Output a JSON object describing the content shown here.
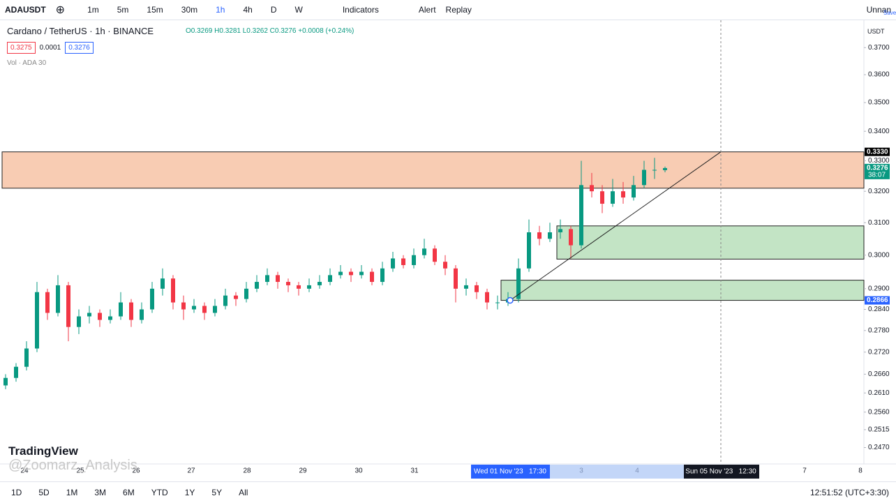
{
  "toolbar": {
    "symbol": "ADAUSDT",
    "intervals": [
      "1m",
      "5m",
      "15m",
      "30m",
      "1h",
      "4h",
      "D",
      "W"
    ],
    "indicators": "Indicators",
    "alert": "Alert",
    "replay": "Replay",
    "layout_name": "Unnan",
    "save": "Save"
  },
  "legend": {
    "title": "Cardano / TetherUS · 1h · BINANCE",
    "ohlc": "O0.3269 H0.3281 L0.3262 C0.3276 +0.0008 (+0.24%)",
    "bid": "0.3275",
    "spread": "0.0001",
    "ask": "0.3276",
    "volume": "Vol · ADA 30"
  },
  "currency": "USDT",
  "watermark": {
    "brand": "TradingView",
    "author": "@Zoomarz_Analysis"
  },
  "chart_data": {
    "type": "candlestick",
    "log_scale": true,
    "up_color": "#089981",
    "down_color": "#f23645",
    "ylim": [
      0.2438,
      0.3801
    ],
    "yticks": [
      {
        "value": 0.37,
        "label": "0.3700"
      },
      {
        "value": 0.36,
        "label": "0.3600"
      },
      {
        "value": 0.35,
        "label": "0.3500"
      },
      {
        "value": 0.34,
        "label": "0.3400"
      },
      {
        "value": 0.33,
        "label": "0.3300"
      },
      {
        "value": 0.32,
        "label": "0.3200"
      },
      {
        "value": 0.31,
        "label": "0.3100"
      },
      {
        "value": 0.3,
        "label": "0.3000"
      },
      {
        "value": 0.29,
        "label": "0.2900"
      },
      {
        "value": 0.284,
        "label": "0.2840"
      },
      {
        "value": 0.278,
        "label": "0.2780"
      },
      {
        "value": 0.272,
        "label": "0.2720"
      },
      {
        "value": 0.266,
        "label": "0.2660"
      },
      {
        "value": 0.261,
        "label": "0.2610"
      },
      {
        "value": 0.256,
        "label": "0.2560"
      },
      {
        "value": 0.2515,
        "label": "0.2515"
      },
      {
        "value": 0.247,
        "label": "0.2470"
      }
    ],
    "x_labels": [
      "24",
      "25",
      "26",
      "27",
      "28",
      "29",
      "30",
      "31",
      "3",
      "4",
      "7",
      "8"
    ],
    "crosshair_labels": [
      "Wed 01 Nov '23   17:30",
      "Sun 05 Nov '23   12:30"
    ],
    "candles": [
      [
        0.263,
        0.266,
        0.262,
        0.265
      ],
      [
        0.265,
        0.269,
        0.264,
        0.268
      ],
      [
        0.268,
        0.275,
        0.267,
        0.273
      ],
      [
        0.273,
        0.292,
        0.272,
        0.289
      ],
      [
        0.289,
        0.29,
        0.281,
        0.283
      ],
      [
        0.283,
        0.294,
        0.282,
        0.291
      ],
      [
        0.291,
        0.292,
        0.275,
        0.279
      ],
      [
        0.279,
        0.284,
        0.277,
        0.282
      ],
      [
        0.282,
        0.285,
        0.28,
        0.283
      ],
      [
        0.283,
        0.284,
        0.279,
        0.281
      ],
      [
        0.281,
        0.284,
        0.28,
        0.282
      ],
      [
        0.282,
        0.289,
        0.281,
        0.286
      ],
      [
        0.286,
        0.287,
        0.279,
        0.281
      ],
      [
        0.281,
        0.286,
        0.28,
        0.284
      ],
      [
        0.284,
        0.292,
        0.283,
        0.29
      ],
      [
        0.29,
        0.296,
        0.288,
        0.293
      ],
      [
        0.293,
        0.294,
        0.284,
        0.286
      ],
      [
        0.286,
        0.288,
        0.281,
        0.284
      ],
      [
        0.284,
        0.287,
        0.283,
        0.285
      ],
      [
        0.285,
        0.286,
        0.281,
        0.283
      ],
      [
        0.283,
        0.287,
        0.282,
        0.285
      ],
      [
        0.285,
        0.29,
        0.284,
        0.288
      ],
      [
        0.288,
        0.289,
        0.285,
        0.287
      ],
      [
        0.287,
        0.292,
        0.286,
        0.29
      ],
      [
        0.29,
        0.294,
        0.289,
        0.292
      ],
      [
        0.292,
        0.296,
        0.291,
        0.294
      ],
      [
        0.294,
        0.295,
        0.29,
        0.292
      ],
      [
        0.292,
        0.293,
        0.289,
        0.291
      ],
      [
        0.291,
        0.292,
        0.288,
        0.29
      ],
      [
        0.29,
        0.293,
        0.289,
        0.291
      ],
      [
        0.291,
        0.294,
        0.29,
        0.292
      ],
      [
        0.292,
        0.296,
        0.291,
        0.294
      ],
      [
        0.294,
        0.297,
        0.293,
        0.295
      ],
      [
        0.295,
        0.296,
        0.292,
        0.294
      ],
      [
        0.294,
        0.297,
        0.293,
        0.295
      ],
      [
        0.295,
        0.296,
        0.291,
        0.292
      ],
      [
        0.292,
        0.298,
        0.291,
        0.296
      ],
      [
        0.296,
        0.301,
        0.295,
        0.299
      ],
      [
        0.299,
        0.3,
        0.296,
        0.297
      ],
      [
        0.297,
        0.302,
        0.296,
        0.3
      ],
      [
        0.3,
        0.305,
        0.299,
        0.302
      ],
      [
        0.302,
        0.303,
        0.297,
        0.298
      ],
      [
        0.298,
        0.3,
        0.294,
        0.296
      ],
      [
        0.296,
        0.297,
        0.286,
        0.29
      ],
      [
        0.29,
        0.293,
        0.288,
        0.291
      ],
      [
        0.291,
        0.292,
        0.287,
        0.289
      ],
      [
        0.289,
        0.29,
        0.284,
        0.286
      ],
      [
        0.286,
        0.288,
        0.284,
        0.286
      ],
      [
        0.286,
        0.289,
        0.285,
        0.287
      ],
      [
        0.287,
        0.299,
        0.286,
        0.296
      ],
      [
        0.296,
        0.311,
        0.295,
        0.307
      ],
      [
        0.307,
        0.309,
        0.303,
        0.305
      ],
      [
        0.305,
        0.31,
        0.304,
        0.307
      ],
      [
        0.307,
        0.311,
        0.305,
        0.308
      ],
      [
        0.308,
        0.309,
        0.299,
        0.303
      ],
      [
        0.303,
        0.33,
        0.302,
        0.322
      ],
      [
        0.322,
        0.326,
        0.318,
        0.32
      ],
      [
        0.32,
        0.322,
        0.313,
        0.316
      ],
      [
        0.316,
        0.324,
        0.315,
        0.32
      ],
      [
        0.32,
        0.323,
        0.316,
        0.318
      ],
      [
        0.318,
        0.325,
        0.317,
        0.322
      ],
      [
        0.322,
        0.33,
        0.321,
        0.327
      ],
      [
        0.327,
        0.331,
        0.324,
        0.327
      ],
      [
        0.3269,
        0.3281,
        0.3262,
        0.3276
      ]
    ],
    "zones": [
      {
        "top": 0.333,
        "bottom": 0.321,
        "color": "#f7c3a6"
      },
      {
        "top": 0.309,
        "bottom": 0.2988,
        "color": "#b8dfbb"
      },
      {
        "top": 0.2925,
        "bottom": 0.2866,
        "color": "#b8dfbb"
      }
    ],
    "trendline": [
      0.2866,
      0.333
    ],
    "price_labels": [
      {
        "value": 0.333,
        "label": "0.3330",
        "color": "#000000"
      },
      {
        "value": 0.3276,
        "label": "0.3276",
        "color": "#089981"
      },
      {
        "value": 0.2866,
        "label": "0.2866",
        "color": "#2962ff"
      }
    ],
    "countdown": "38:07"
  },
  "bottom_bar": {
    "ranges": [
      "1D",
      "5D",
      "1M",
      "3M",
      "6M",
      "YTD",
      "1Y",
      "5Y",
      "All"
    ],
    "clock": "12:51:52 (UTC+3:30)"
  }
}
